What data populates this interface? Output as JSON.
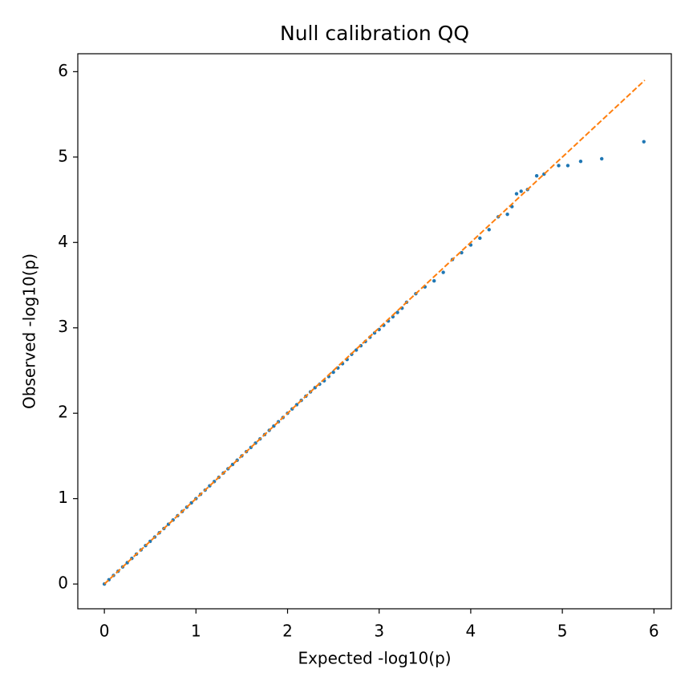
{
  "chart_data": {
    "type": "scatter",
    "title": "Null calibration QQ",
    "xlabel": "Expected -log10(p)",
    "ylabel": "Observed -log10(p)",
    "xlim": [
      -0.29,
      6.19
    ],
    "ylim": [
      -0.29,
      6.21
    ],
    "xticks": [
      0,
      1,
      2,
      3,
      4,
      5,
      6
    ],
    "yticks": [
      0,
      1,
      2,
      3,
      4,
      5,
      6
    ],
    "grid": false,
    "points": {
      "color": "#1f77b4",
      "x": [
        0,
        0.05,
        0.1,
        0.15,
        0.2,
        0.25,
        0.3,
        0.35,
        0.4,
        0.45,
        0.5,
        0.55,
        0.6,
        0.65,
        0.7,
        0.75,
        0.8,
        0.85,
        0.9,
        0.95,
        1.0,
        1.05,
        1.1,
        1.15,
        1.2,
        1.25,
        1.3,
        1.35,
        1.4,
        1.45,
        1.5,
        1.55,
        1.6,
        1.65,
        1.7,
        1.75,
        1.8,
        1.85,
        1.9,
        1.95,
        2.0,
        2.05,
        2.1,
        2.15,
        2.2,
        2.25,
        2.3,
        2.35,
        2.4,
        2.45,
        2.5,
        2.55,
        2.6,
        2.65,
        2.7,
        2.75,
        2.8,
        2.85,
        2.9,
        2.95,
        3.0,
        3.05,
        3.1,
        3.15,
        3.2,
        3.25,
        3.3,
        3.4,
        3.5,
        3.6,
        3.7,
        3.8,
        3.9,
        4.0,
        4.1,
        4.2,
        4.3,
        4.4,
        4.45,
        4.5,
        4.55,
        4.62,
        4.72,
        4.8,
        4.96,
        5.06,
        5.2,
        5.43,
        5.89
      ],
      "y": [
        0,
        0.05,
        0.1,
        0.15,
        0.2,
        0.25,
        0.3,
        0.35,
        0.4,
        0.45,
        0.5,
        0.55,
        0.6,
        0.65,
        0.7,
        0.75,
        0.8,
        0.85,
        0.9,
        0.95,
        1.0,
        1.05,
        1.1,
        1.15,
        1.2,
        1.25,
        1.3,
        1.35,
        1.4,
        1.45,
        1.5,
        1.55,
        1.6,
        1.65,
        1.7,
        1.75,
        1.8,
        1.85,
        1.9,
        1.95,
        2.0,
        2.05,
        2.1,
        2.15,
        2.2,
        2.25,
        2.3,
        2.34,
        2.38,
        2.43,
        2.48,
        2.53,
        2.58,
        2.63,
        2.69,
        2.74,
        2.79,
        2.84,
        2.89,
        2.94,
        2.98,
        3.03,
        3.08,
        3.13,
        3.18,
        3.23,
        3.3,
        3.4,
        3.48,
        3.55,
        3.65,
        3.8,
        3.88,
        3.97,
        4.05,
        4.15,
        4.3,
        4.33,
        4.42,
        4.57,
        4.6,
        4.62,
        4.78,
        4.8,
        4.9,
        4.9,
        4.95,
        4.98,
        5.18
      ]
    },
    "reference_line": {
      "color": "#ff7f0e",
      "dashed": true,
      "x": [
        0,
        5.9
      ],
      "y": [
        0,
        5.9
      ]
    }
  }
}
